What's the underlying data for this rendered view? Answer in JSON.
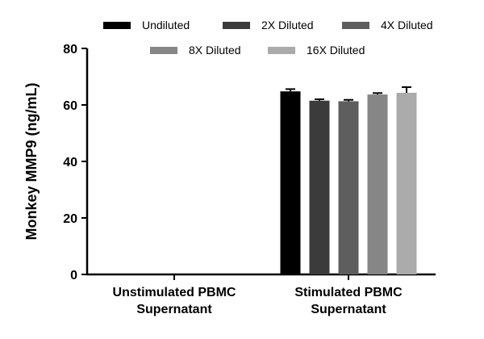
{
  "chart_data": {
    "type": "bar",
    "title": "",
    "xlabel": "",
    "ylabel": "Monkey  MMP9 (ng/mL)",
    "ylim": [
      0,
      80
    ],
    "yticks": [
      0,
      20,
      40,
      60,
      80
    ],
    "categories": [
      [
        "Unstimulated PBMC",
        "Supernatant"
      ],
      [
        "Stimulated PBMC",
        "Supernatant"
      ]
    ],
    "series": [
      {
        "name": "Undiluted",
        "color": "#000000",
        "values": [
          0,
          64.8
        ],
        "errors": [
          0,
          0.8
        ]
      },
      {
        "name": "2X Diluted",
        "color": "#3b3b3b",
        "values": [
          0,
          61.5
        ],
        "errors": [
          0,
          0.5
        ]
      },
      {
        "name": "4X Diluted",
        "color": "#5e5e5e",
        "values": [
          0,
          61.3
        ],
        "errors": [
          0,
          0.5
        ]
      },
      {
        "name": "8X Diluted",
        "color": "#868686",
        "values": [
          0,
          63.7
        ],
        "errors": [
          0,
          0.5
        ]
      },
      {
        "name": "16X Diluted",
        "color": "#ababab",
        "values": [
          0,
          64.3
        ],
        "errors": [
          0,
          2.0
        ]
      }
    ],
    "legend": {
      "position": "top",
      "rows": [
        [
          "Undiluted",
          "2X Diluted",
          "4X Diluted"
        ],
        [
          "8X Diluted",
          "16X Diluted"
        ]
      ]
    }
  }
}
